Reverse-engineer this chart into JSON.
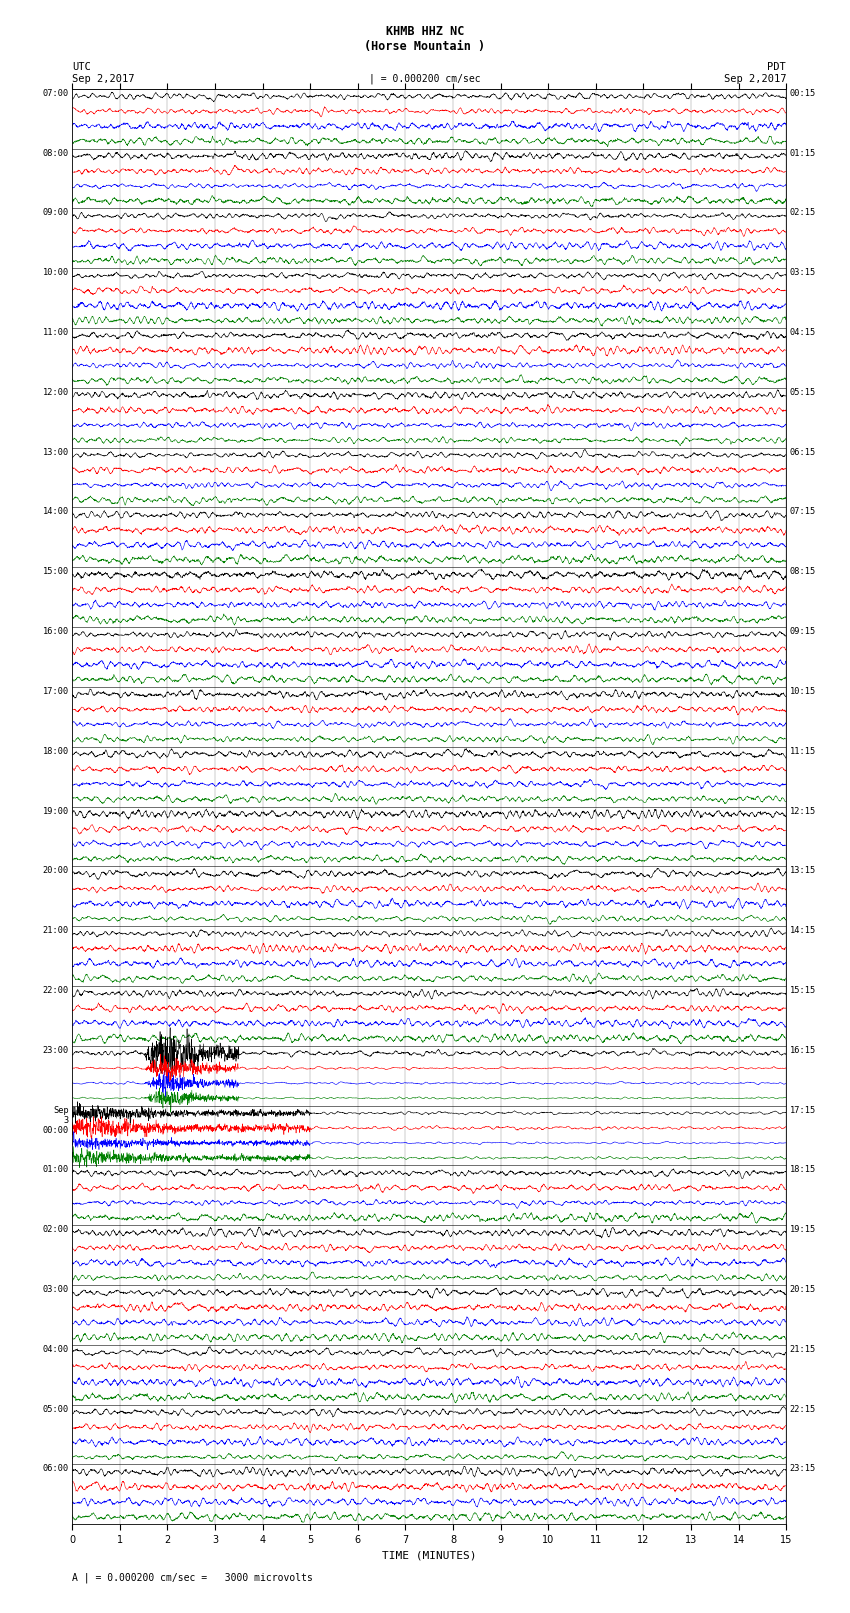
{
  "title_line1": "KHMB HHZ NC",
  "title_line2": "(Horse Mountain )",
  "scale_label": "| = 0.000200 cm/sec",
  "utc_label": "UTC\nSep 2,2017",
  "pdt_label": "PDT\nSep 2,2017",
  "xlabel": "TIME (MINUTES)",
  "bottom_note": "A | = 0.000200 cm/sec =   3000 microvolts",
  "fig_width": 8.5,
  "fig_height": 16.13,
  "dpi": 100,
  "bg_color": "#ffffff",
  "trace_colors": [
    "#000000",
    "#ff0000",
    "#0000ff",
    "#008000"
  ],
  "left_times_utc": [
    "07:00",
    "08:00",
    "09:00",
    "10:00",
    "11:00",
    "12:00",
    "13:00",
    "14:00",
    "15:00",
    "16:00",
    "17:00",
    "18:00",
    "19:00",
    "20:00",
    "21:00",
    "22:00",
    "23:00",
    "Sep\n3\n00:00",
    "01:00",
    "02:00",
    "03:00",
    "04:00",
    "05:00",
    "06:00"
  ],
  "right_times_pdt": [
    "00:15",
    "01:15",
    "02:15",
    "03:15",
    "04:15",
    "05:15",
    "06:15",
    "07:15",
    "08:15",
    "09:15",
    "10:15",
    "11:15",
    "12:15",
    "13:15",
    "14:15",
    "15:15",
    "16:15",
    "17:15",
    "18:15",
    "19:15",
    "20:15",
    "21:15",
    "22:15",
    "23:15"
  ],
  "n_rows": 24,
  "n_traces_per_row": 4,
  "x_min": 0,
  "x_max": 15,
  "x_ticks": [
    0,
    1,
    2,
    3,
    4,
    5,
    6,
    7,
    8,
    9,
    10,
    11,
    12,
    13,
    14,
    15
  ],
  "noise_scale": 1.0,
  "earthquake_row": 16,
  "earthquake_rows_extra": [
    17
  ]
}
